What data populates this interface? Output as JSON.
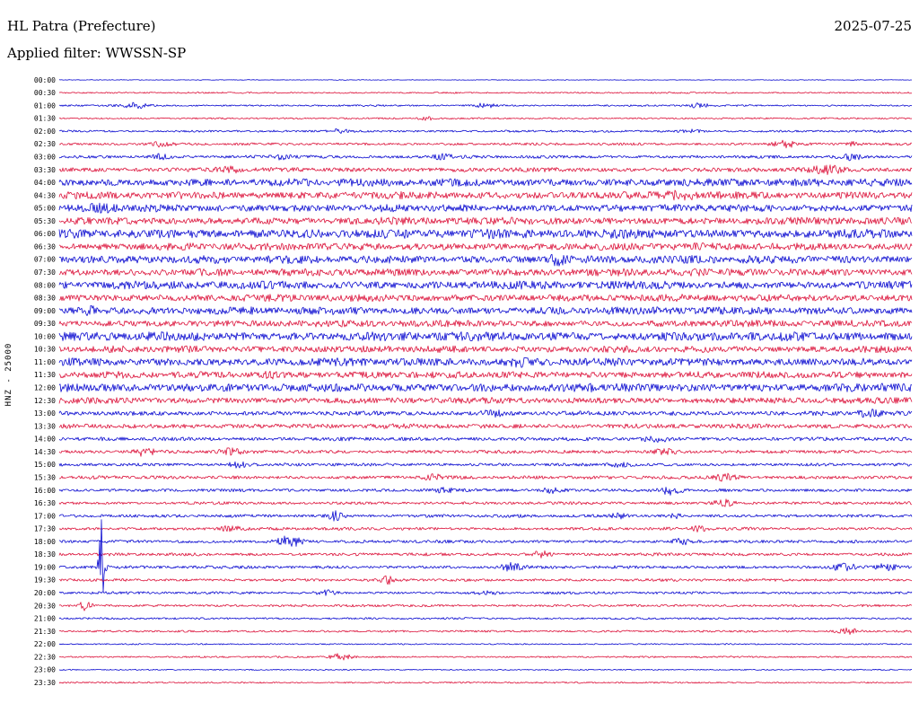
{
  "header": {
    "station_title": "HL Patra (Prefecture)",
    "date": "2025-07-25",
    "filter_label": "Applied filter: WWSSN-SP"
  },
  "axis": {
    "left_label": "HNZ - 25000"
  },
  "chart_data": {
    "type": "line",
    "subtype": "helicorder-seismogram-dayplot",
    "station": "HL Patra (Prefecture)",
    "channel": "HNZ",
    "scale": 25000,
    "date": "2025-07-25",
    "filter": "WWSSN-SP",
    "row_interval_minutes": 30,
    "rows_count": 48,
    "legend_position": "none",
    "grid": false,
    "trace_colors": {
      "blue": "#0b0bd0",
      "red": "#dc143c"
    },
    "event_format": [
      "x_fraction_of_row",
      "amplitude_px",
      "width_px"
    ],
    "rows": [
      {
        "time": "00:00",
        "color": "blue",
        "amp": 0.4,
        "events": []
      },
      {
        "time": "00:30",
        "color": "red",
        "amp": 0.9,
        "events": []
      },
      {
        "time": "01:00",
        "color": "blue",
        "amp": 1.0,
        "events": [
          [
            0.09,
            3,
            10
          ],
          [
            0.5,
            2.5,
            8
          ],
          [
            0.75,
            2.5,
            8
          ]
        ]
      },
      {
        "time": "01:30",
        "color": "red",
        "amp": 1.0,
        "events": [
          [
            0.43,
            2,
            6
          ]
        ]
      },
      {
        "time": "02:00",
        "color": "blue",
        "amp": 1.3,
        "events": [
          [
            0.33,
            2,
            8
          ],
          [
            0.74,
            2,
            8
          ]
        ]
      },
      {
        "time": "02:30",
        "color": "red",
        "amp": 1.5,
        "events": [
          [
            0.12,
            2.5,
            8
          ],
          [
            0.85,
            3.5,
            10
          ],
          [
            0.93,
            2,
            6
          ]
        ]
      },
      {
        "time": "03:00",
        "color": "blue",
        "amp": 1.8,
        "events": [
          [
            0.12,
            3,
            8
          ],
          [
            0.26,
            2.5,
            8
          ],
          [
            0.45,
            2.5,
            8
          ],
          [
            0.93,
            3,
            8
          ]
        ]
      },
      {
        "time": "03:30",
        "color": "red",
        "amp": 2.6,
        "events": [
          [
            0.2,
            2.5,
            10
          ],
          [
            0.9,
            4,
            14
          ]
        ]
      },
      {
        "time": "04:00",
        "color": "blue",
        "amp": 4.6,
        "events": []
      },
      {
        "time": "04:30",
        "color": "red",
        "amp": 4.4,
        "events": [
          [
            0.73,
            2.5,
            14
          ]
        ]
      },
      {
        "time": "05:00",
        "color": "blue",
        "amp": 4.4,
        "events": [
          [
            0.05,
            2,
            10
          ]
        ]
      },
      {
        "time": "05:30",
        "color": "red",
        "amp": 4.4,
        "events": []
      },
      {
        "time": "06:00",
        "color": "blue",
        "amp": 5.4,
        "events": [
          [
            0.5,
            2,
            12
          ]
        ]
      },
      {
        "time": "06:30",
        "color": "red",
        "amp": 4.4,
        "events": []
      },
      {
        "time": "07:00",
        "color": "blue",
        "amp": 4.8,
        "events": [
          [
            0.585,
            4,
            6
          ]
        ]
      },
      {
        "time": "07:30",
        "color": "red",
        "amp": 4.4,
        "events": []
      },
      {
        "time": "08:00",
        "color": "blue",
        "amp": 4.8,
        "events": []
      },
      {
        "time": "08:30",
        "color": "red",
        "amp": 4.2,
        "events": []
      },
      {
        "time": "09:00",
        "color": "blue",
        "amp": 4.6,
        "events": [
          [
            0.035,
            4,
            6
          ]
        ]
      },
      {
        "time": "09:30",
        "color": "red",
        "amp": 4.0,
        "events": []
      },
      {
        "time": "10:00",
        "color": "blue",
        "amp": 5.4,
        "events": []
      },
      {
        "time": "10:30",
        "color": "red",
        "amp": 4.0,
        "events": []
      },
      {
        "time": "11:00",
        "color": "blue",
        "amp": 4.6,
        "events": [
          [
            0.54,
            2.5,
            10
          ]
        ]
      },
      {
        "time": "11:30",
        "color": "red",
        "amp": 4.0,
        "events": [
          [
            0.25,
            2,
            10
          ]
        ]
      },
      {
        "time": "12:00",
        "color": "blue",
        "amp": 5.0,
        "events": []
      },
      {
        "time": "12:30",
        "color": "red",
        "amp": 3.6,
        "events": []
      },
      {
        "time": "13:00",
        "color": "blue",
        "amp": 2.6,
        "events": [
          [
            0.51,
            3,
            10
          ],
          [
            0.95,
            3,
            10
          ]
        ]
      },
      {
        "time": "13:30",
        "color": "red",
        "amp": 2.8,
        "events": []
      },
      {
        "time": "14:00",
        "color": "blue",
        "amp": 2.2,
        "events": [
          [
            0.7,
            3,
            8
          ]
        ]
      },
      {
        "time": "14:30",
        "color": "red",
        "amp": 2.0,
        "events": [
          [
            0.1,
            4,
            8
          ],
          [
            0.2,
            3,
            8
          ],
          [
            0.71,
            3,
            8
          ]
        ]
      },
      {
        "time": "15:00",
        "color": "blue",
        "amp": 1.8,
        "events": [
          [
            0.21,
            2.5,
            8
          ],
          [
            0.66,
            2,
            8
          ]
        ]
      },
      {
        "time": "15:30",
        "color": "red",
        "amp": 2.0,
        "events": [
          [
            0.44,
            2.5,
            8
          ],
          [
            0.78,
            3.5,
            10
          ]
        ]
      },
      {
        "time": "16:00",
        "color": "blue",
        "amp": 1.8,
        "events": [
          [
            0.45,
            2.5,
            8
          ],
          [
            0.58,
            3,
            8
          ],
          [
            0.715,
            4,
            10
          ]
        ]
      },
      {
        "time": "16:30",
        "color": "red",
        "amp": 1.7,
        "events": [
          [
            0.78,
            4,
            8
          ]
        ]
      },
      {
        "time": "17:00",
        "color": "blue",
        "amp": 1.8,
        "events": [
          [
            0.325,
            5,
            6
          ],
          [
            0.655,
            2.5,
            6
          ],
          [
            0.72,
            2.5,
            6
          ]
        ]
      },
      {
        "time": "17:30",
        "color": "red",
        "amp": 1.8,
        "events": [
          [
            0.2,
            2.5,
            8
          ],
          [
            0.75,
            2.5,
            8
          ]
        ]
      },
      {
        "time": "18:00",
        "color": "blue",
        "amp": 1.8,
        "events": [
          [
            0.27,
            6.5,
            9
          ],
          [
            0.73,
            2.5,
            8
          ]
        ]
      },
      {
        "time": "18:30",
        "color": "red",
        "amp": 1.8,
        "events": [
          [
            0.565,
            3.5,
            8
          ]
        ]
      },
      {
        "time": "19:00",
        "color": "blue",
        "amp": 1.8,
        "events": [
          [
            0.05,
            68,
            2.2
          ],
          [
            0.53,
            4.5,
            8
          ],
          [
            0.92,
            4,
            10
          ],
          [
            0.97,
            3.5,
            8
          ]
        ]
      },
      {
        "time": "19:30",
        "color": "red",
        "amp": 1.6,
        "events": [
          [
            0.385,
            3.5,
            6
          ]
        ]
      },
      {
        "time": "20:00",
        "color": "blue",
        "amp": 1.5,
        "events": [
          [
            0.315,
            2.5,
            8
          ],
          [
            0.5,
            2,
            8
          ]
        ]
      },
      {
        "time": "20:30",
        "color": "red",
        "amp": 1.4,
        "events": [
          [
            0.03,
            5,
            5
          ]
        ]
      },
      {
        "time": "21:00",
        "color": "blue",
        "amp": 1.2,
        "events": []
      },
      {
        "time": "21:30",
        "color": "red",
        "amp": 1.2,
        "events": [
          [
            0.925,
            3.5,
            8
          ]
        ]
      },
      {
        "time": "22:00",
        "color": "blue",
        "amp": 0.8,
        "events": []
      },
      {
        "time": "22:30",
        "color": "red",
        "amp": 1.0,
        "events": [
          [
            0.33,
            3.5,
            9
          ]
        ]
      },
      {
        "time": "23:00",
        "color": "blue",
        "amp": 0.7,
        "events": []
      },
      {
        "time": "23:30",
        "color": "red",
        "amp": 0.9,
        "events": []
      }
    ]
  }
}
